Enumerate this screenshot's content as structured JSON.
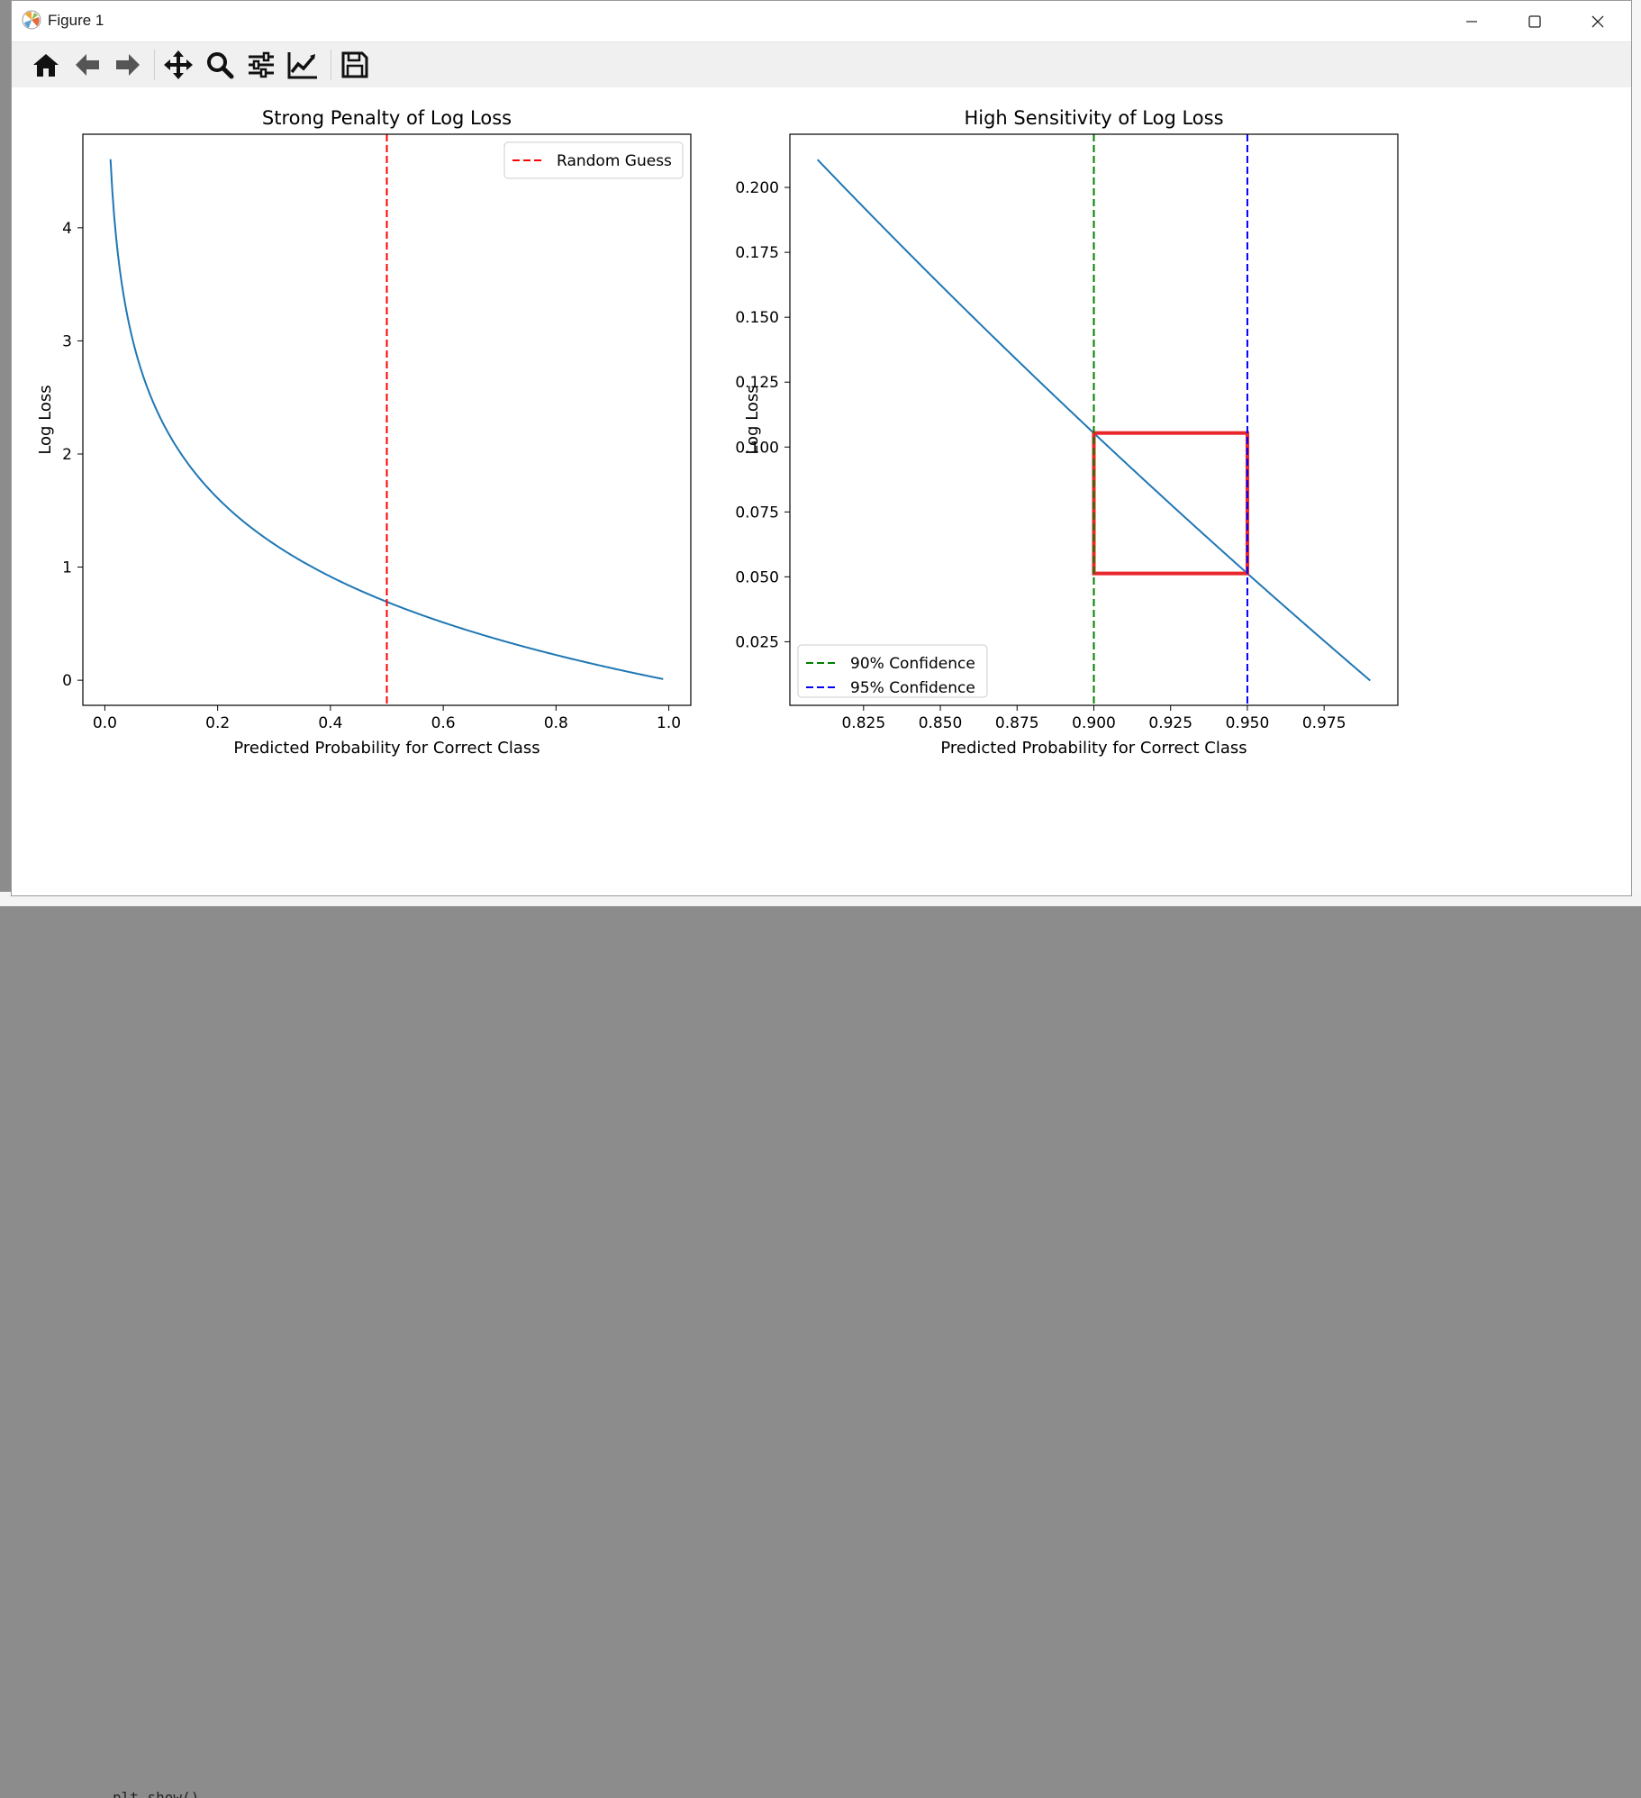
{
  "window": {
    "title": "Figure 1",
    "app_icon": "matplotlib-icon"
  },
  "window_controls": [
    {
      "name": "minimize",
      "icon": "minimize-icon"
    },
    {
      "name": "maximize",
      "icon": "maximize-icon"
    },
    {
      "name": "close",
      "icon": "close-icon"
    }
  ],
  "toolbar": {
    "buttons": [
      {
        "name": "home",
        "icon": "home-icon"
      },
      {
        "name": "back",
        "icon": "arrow-left-icon"
      },
      {
        "name": "forward",
        "icon": "arrow-right-icon"
      },
      {
        "name": "pan",
        "icon": "move-icon"
      },
      {
        "name": "zoom",
        "icon": "magnifier-icon"
      },
      {
        "name": "configure-subplots",
        "icon": "sliders-icon"
      },
      {
        "name": "edit-axis",
        "icon": "line-chart-icon"
      },
      {
        "name": "save",
        "icon": "floppy-disk-icon"
      }
    ]
  },
  "background_code": "plt.show()",
  "colors": {
    "blue": "#1f77b4",
    "red": "#ff0000",
    "green": "#008000",
    "navy": "#0000ff",
    "box": "#e8262b"
  },
  "chart_data": [
    {
      "type": "line",
      "title": "Strong Penalty of Log Loss",
      "xlabel": "Predicted Probability for Correct Class",
      "ylabel": "Log Loss",
      "xlim": [
        -0.039,
        1.039
      ],
      "ylim": [
        -0.222,
        4.827
      ],
      "xticks": [
        "0.0",
        "0.2",
        "0.4",
        "0.6",
        "0.8",
        "1.0"
      ],
      "yticks": [
        "0",
        "1",
        "2",
        "3",
        "4"
      ],
      "series": [
        {
          "function": "-ln(x)",
          "x_range": [
            0.01,
            0.99
          ],
          "color": "#1f77b4"
        }
      ],
      "vlines": [
        {
          "x": 0.5,
          "label": "Random Guess",
          "color": "#ff0000",
          "style": "dashed"
        }
      ],
      "legend": "top-right"
    },
    {
      "type": "line",
      "title": "High Sensitivity of Log Loss",
      "xlabel": "Predicted Probability for Correct Class",
      "ylabel": "Log Loss",
      "xlim": [
        0.801,
        0.999
      ],
      "ylim": [
        0.0005,
        0.2205
      ],
      "xticks": [
        "0.825",
        "0.850",
        "0.875",
        "0.900",
        "0.925",
        "0.950",
        "0.975"
      ],
      "yticks": [
        "0.025",
        "0.050",
        "0.075",
        "0.100",
        "0.125",
        "0.150",
        "0.175",
        "0.200"
      ],
      "series": [
        {
          "function": "-ln(x)",
          "x_range": [
            0.81,
            0.99
          ],
          "color": "#1f77b4"
        }
      ],
      "vlines": [
        {
          "x": 0.9,
          "label": "90% Confidence",
          "color": "#008000",
          "style": "dashed"
        },
        {
          "x": 0.95,
          "label": "95% Confidence",
          "color": "#0000ff",
          "style": "dashed"
        }
      ],
      "highlight_box": {
        "x": [
          0.9,
          0.95
        ],
        "y": [
          0.0513,
          0.1054
        ],
        "color": "#e8262b"
      },
      "legend": "bottom-left"
    }
  ]
}
